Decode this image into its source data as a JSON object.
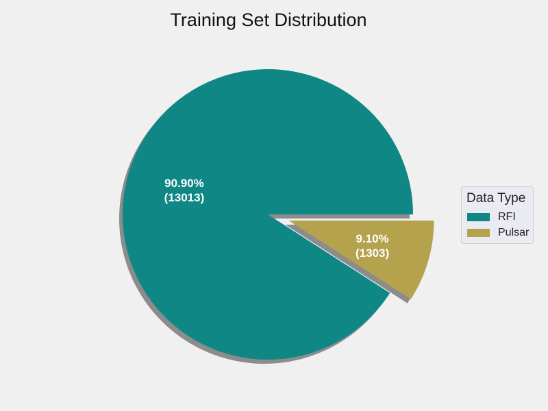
{
  "chart_data": {
    "type": "pie",
    "title": "Training Set Distribution",
    "slices": [
      {
        "label": "RFI",
        "value": 13013,
        "percent_label": "90.90%",
        "count_label": "(13013)",
        "color": "#0e8785",
        "explode": 0
      },
      {
        "label": "Pulsar",
        "value": 1303,
        "percent_label": "9.10%",
        "count_label": "(1303)",
        "color": "#b5a24d",
        "explode": 0.15
      }
    ],
    "start_angle": 0,
    "direction": "counterclockwise",
    "shadow": true,
    "legend": {
      "title": "Data Type",
      "placement": "right"
    }
  }
}
